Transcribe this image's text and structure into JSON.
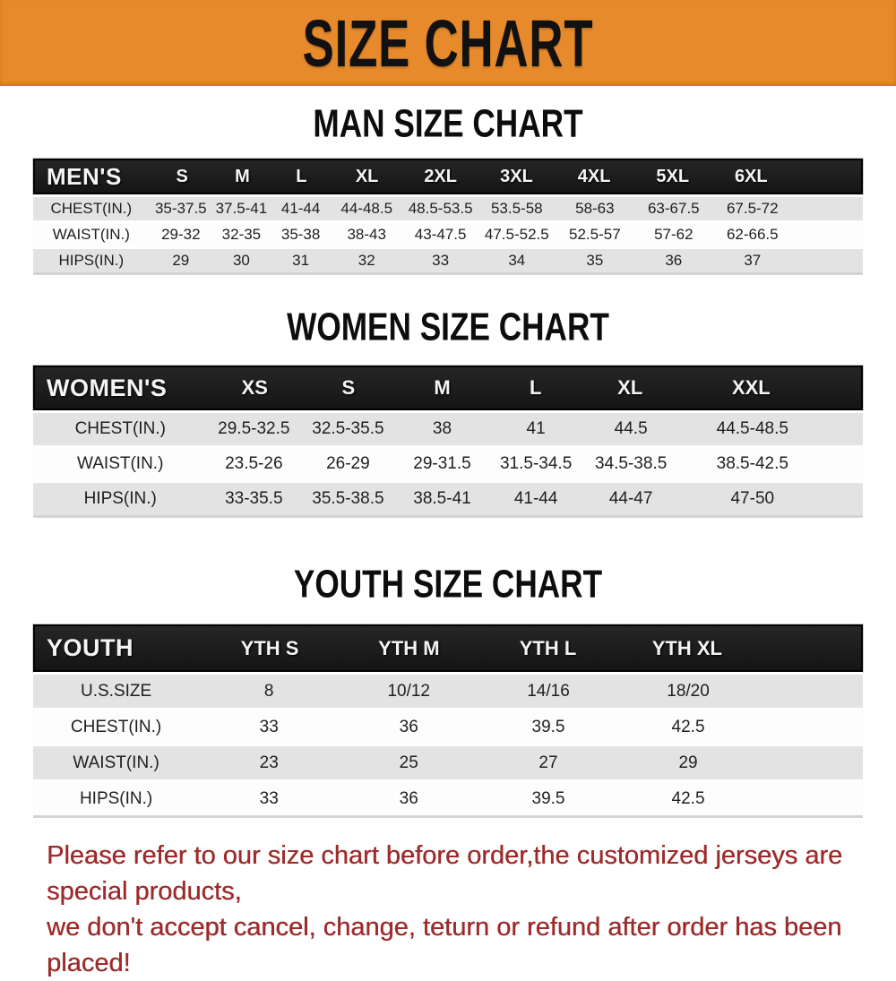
{
  "banner": {
    "title": "SIZE CHART"
  },
  "sections": {
    "man": {
      "title": "MAN SIZE CHART"
    },
    "women": {
      "title": "WOMEN SIZE CHART"
    },
    "youth": {
      "title": "YOUTH SIZE CHART"
    }
  },
  "tables": {
    "men": {
      "header_label": "MEN'S",
      "columns": [
        "S",
        "M",
        "L",
        "XL",
        "2XL",
        "3XL",
        "4XL",
        "5XL",
        "6XL"
      ],
      "rows": [
        {
          "label": "CHEST(IN.)",
          "values": [
            "35-37.5",
            "37.5-41",
            "41-44",
            "44-48.5",
            "48.5-53.5",
            "53.5-58",
            "58-63",
            "63-67.5",
            "67.5-72"
          ]
        },
        {
          "label": "WAIST(IN.)",
          "values": [
            "29-32",
            "32-35",
            "35-38",
            "38-43",
            "43-47.5",
            "47.5-52.5",
            "52.5-57",
            "57-62",
            "62-66.5"
          ]
        },
        {
          "label": "HIPS(IN.)",
          "values": [
            "29",
            "30",
            "31",
            "32",
            "33",
            "34",
            "35",
            "36",
            "37"
          ]
        }
      ]
    },
    "women": {
      "header_label": "WOMEN'S",
      "columns": [
        "XS",
        "S",
        "M",
        "L",
        "XL",
        "XXL"
      ],
      "rows": [
        {
          "label": "CHEST(IN.)",
          "values": [
            "29.5-32.5",
            "32.5-35.5",
            "38",
            "41",
            "44.5",
            "44.5-48.5"
          ]
        },
        {
          "label": "WAIST(IN.)",
          "values": [
            "23.5-26",
            "26-29",
            "29-31.5",
            "31.5-34.5",
            "34.5-38.5",
            "38.5-42.5"
          ]
        },
        {
          "label": "HIPS(IN.)",
          "values": [
            "33-35.5",
            "35.5-38.5",
            "38.5-41",
            "41-44",
            "44-47",
            "47-50"
          ]
        }
      ]
    },
    "youth": {
      "header_label": "YOUTH",
      "columns": [
        "YTH S",
        "YTH M",
        "YTH L",
        "YTH XL"
      ],
      "rows": [
        {
          "label": "U.S.SIZE",
          "values": [
            "8",
            "10/12",
            "14/16",
            "18/20"
          ]
        },
        {
          "label": "CHEST(IN.)",
          "values": [
            "33",
            "36",
            "39.5",
            "42.5"
          ]
        },
        {
          "label": "WAIST(IN.)",
          "values": [
            "23",
            "25",
            "27",
            "29"
          ]
        },
        {
          "label": "HIPS(IN.)",
          "values": [
            "33",
            "36",
            "39.5",
            "42.5"
          ]
        }
      ]
    }
  },
  "note": {
    "line1": "Please refer to our size chart before order,the customized jerseys are special products,",
    "line2": "we don't accept cancel, change, teturn or refund after order has been placed!"
  },
  "colors": {
    "banner_orange": "#E78A2B",
    "header_black": "#1b1b1b",
    "row_gray": "#e3e3e3",
    "note_red": "#9e2b2b"
  }
}
